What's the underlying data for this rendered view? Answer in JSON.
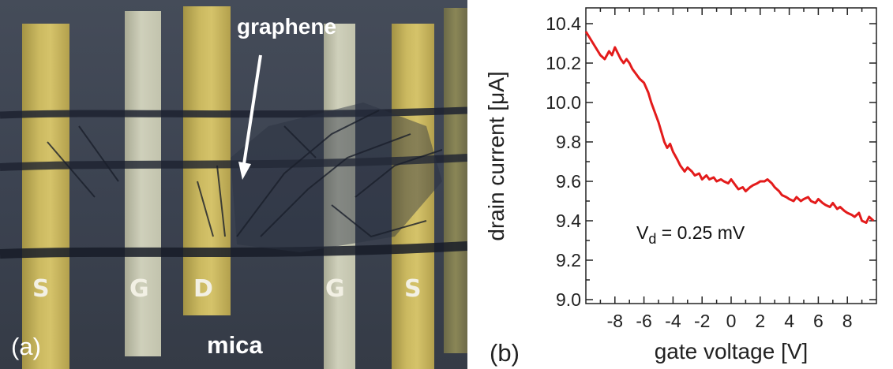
{
  "panel_a": {
    "letter": "(a)",
    "graphene_label": "graphene",
    "substrate_label": "mica",
    "electrodes": [
      "S",
      "G",
      "D",
      "G",
      "S"
    ]
  },
  "panel_b": {
    "letter": "(b)"
  },
  "chart_data": {
    "type": "line",
    "xlabel": "gate voltage [V]",
    "ylabel": "drain current [μA]",
    "xlim": [
      -10,
      10
    ],
    "ylim": [
      8.98,
      10.48
    ],
    "x_ticks": [
      -8,
      -6,
      -4,
      -2,
      0,
      2,
      4,
      6,
      8
    ],
    "x_tick_labels": [
      "-8",
      "-6",
      "-4",
      "-2",
      "0",
      "2",
      "4",
      "6",
      "8"
    ],
    "y_ticks": [
      9.0,
      9.2,
      9.4,
      9.6,
      9.8,
      10.0,
      10.2,
      10.4
    ],
    "y_tick_labels": [
      "9.0",
      "9.2",
      "9.4",
      "9.6",
      "9.8",
      "10.0",
      "10.2",
      "10.4"
    ],
    "annotation": {
      "main": "V",
      "sub": "d",
      "rest": " = 0.25 mV"
    },
    "grid": false,
    "series": [
      {
        "color": "#e31b1b",
        "x": [
          -10.0,
          -9.5,
          -9.0,
          -8.7,
          -8.4,
          -8.2,
          -8.0,
          -7.8,
          -7.6,
          -7.4,
          -7.2,
          -7.0,
          -6.8,
          -6.6,
          -6.3,
          -6.0,
          -5.7,
          -5.5,
          -5.2,
          -5.0,
          -4.8,
          -4.6,
          -4.4,
          -4.2,
          -4.0,
          -3.7,
          -3.5,
          -3.2,
          -3.0,
          -2.7,
          -2.5,
          -2.2,
          -2.0,
          -1.7,
          -1.5,
          -1.2,
          -1.0,
          -0.7,
          -0.5,
          -0.2,
          0.0,
          0.3,
          0.5,
          0.8,
          1.0,
          1.3,
          1.5,
          1.8,
          2.0,
          2.3,
          2.5,
          2.8,
          3.0,
          3.3,
          3.5,
          3.8,
          4.0,
          4.3,
          4.5,
          4.8,
          5.0,
          5.3,
          5.5,
          5.8,
          6.0,
          6.3,
          6.5,
          6.8,
          7.0,
          7.3,
          7.5,
          7.8,
          8.0,
          8.3,
          8.5,
          8.8,
          9.0,
          9.3,
          9.5,
          9.8
        ],
        "y": [
          10.36,
          10.3,
          10.24,
          10.22,
          10.26,
          10.24,
          10.28,
          10.25,
          10.22,
          10.2,
          10.22,
          10.2,
          10.17,
          10.15,
          10.12,
          10.1,
          10.05,
          10.0,
          9.94,
          9.9,
          9.85,
          9.8,
          9.77,
          9.79,
          9.75,
          9.71,
          9.68,
          9.65,
          9.67,
          9.65,
          9.63,
          9.64,
          9.61,
          9.63,
          9.61,
          9.62,
          9.6,
          9.61,
          9.6,
          9.59,
          9.61,
          9.58,
          9.56,
          9.57,
          9.55,
          9.57,
          9.58,
          9.59,
          9.6,
          9.6,
          9.61,
          9.59,
          9.57,
          9.55,
          9.53,
          9.52,
          9.51,
          9.5,
          9.52,
          9.5,
          9.51,
          9.52,
          9.5,
          9.49,
          9.51,
          9.49,
          9.48,
          9.47,
          9.49,
          9.46,
          9.47,
          9.45,
          9.44,
          9.43,
          9.42,
          9.44,
          9.4,
          9.39,
          9.42,
          9.4
        ]
      }
    ]
  }
}
